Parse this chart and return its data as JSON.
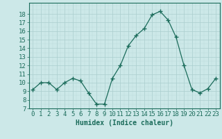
{
  "x": [
    0,
    1,
    2,
    3,
    4,
    5,
    6,
    7,
    8,
    9,
    10,
    11,
    12,
    13,
    14,
    15,
    16,
    17,
    18,
    19,
    20,
    21,
    22,
    23
  ],
  "y": [
    9.2,
    10.0,
    10.0,
    9.2,
    10.0,
    10.5,
    10.2,
    8.8,
    7.5,
    7.5,
    10.5,
    12.0,
    14.3,
    15.5,
    16.3,
    17.9,
    18.3,
    17.3,
    15.3,
    12.0,
    9.2,
    8.8,
    9.3,
    10.5
  ],
  "line_color": "#1a6b5a",
  "marker": "+",
  "markersize": 4,
  "markeredgewidth": 1.0,
  "linewidth": 0.9,
  "bg_color": "#cce8e8",
  "grid_color_major": "#aacece",
  "grid_color_minor": "#bbdada",
  "xlabel": "Humidex (Indice chaleur)",
  "ylim": [
    7,
    19
  ],
  "xlim_min": -0.5,
  "xlim_max": 23.5,
  "yticks": [
    7,
    8,
    9,
    10,
    11,
    12,
    13,
    14,
    15,
    16,
    17,
    18
  ],
  "xticks": [
    0,
    1,
    2,
    3,
    4,
    5,
    6,
    7,
    8,
    9,
    10,
    11,
    12,
    13,
    14,
    15,
    16,
    17,
    18,
    19,
    20,
    21,
    22,
    23
  ],
  "xlabel_fontsize": 7,
  "tick_fontsize": 6.5,
  "label_color": "#1a6b5a",
  "spine_color": "#1a6b5a"
}
